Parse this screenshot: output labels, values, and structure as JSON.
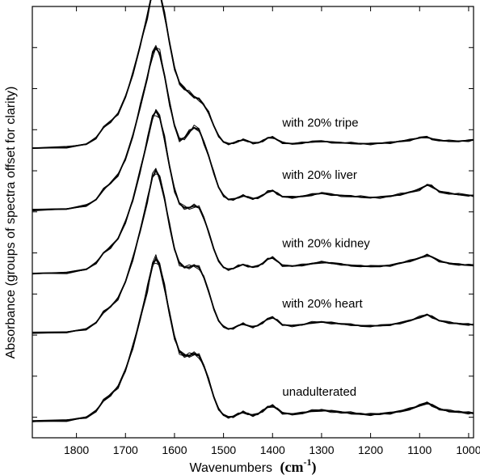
{
  "chart_data": {
    "type": "line",
    "xlabel": "Wavenumbers",
    "xlabel_unit": "cm",
    "xlabel_unit_exp": "-1",
    "ylabel": "Absorbance (groups of spectra offset for clarity)",
    "xlim": [
      1890,
      990
    ],
    "x_reversed": true,
    "y_tick_labels_shown": false,
    "grid": false,
    "x_ticks": [
      1800,
      1700,
      1600,
      1500,
      1400,
      1300,
      1200,
      1100,
      1000
    ],
    "x_tick_labels": [
      "1800",
      "1700",
      "1600",
      "1500",
      "1400",
      "1300",
      "1200",
      "1100",
      "1000"
    ],
    "ylim": [
      0,
      10.5
    ],
    "y_ticks": [
      0.5,
      1.5,
      2.5,
      3.5,
      4.5,
      5.5,
      6.5,
      7.5,
      8.5,
      9.5,
      10.5
    ],
    "x": [
      1890,
      1820,
      1780,
      1760,
      1745,
      1730,
      1715,
      1700,
      1685,
      1670,
      1655,
      1645,
      1638,
      1630,
      1620,
      1610,
      1600,
      1590,
      1580,
      1570,
      1560,
      1550,
      1540,
      1530,
      1520,
      1510,
      1500,
      1490,
      1480,
      1470,
      1460,
      1450,
      1440,
      1430,
      1420,
      1410,
      1400,
      1390,
      1380,
      1360,
      1340,
      1320,
      1300,
      1280,
      1260,
      1240,
      1220,
      1200,
      1180,
      1160,
      1140,
      1120,
      1100,
      1085,
      1075,
      1060,
      1040,
      1020,
      1000,
      990
    ],
    "series": [
      {
        "label": "with 20% tripe",
        "replicates": 4,
        "y": [
          7.05,
          7.07,
          7.15,
          7.3,
          7.55,
          7.7,
          7.9,
          8.3,
          8.85,
          9.55,
          10.3,
          10.85,
          11.0,
          10.85,
          10.3,
          9.6,
          9.0,
          8.65,
          8.5,
          8.4,
          8.3,
          8.25,
          8.1,
          7.9,
          7.6,
          7.35,
          7.2,
          7.15,
          7.18,
          7.22,
          7.25,
          7.22,
          7.18,
          7.18,
          7.22,
          7.3,
          7.32,
          7.25,
          7.18,
          7.16,
          7.18,
          7.2,
          7.22,
          7.2,
          7.18,
          7.17,
          7.16,
          7.16,
          7.17,
          7.18,
          7.22,
          7.25,
          7.3,
          7.32,
          7.28,
          7.24,
          7.22,
          7.22,
          7.24,
          7.25
        ]
      },
      {
        "label": "with 20% liver",
        "replicates": 4,
        "y": [
          5.55,
          5.57,
          5.65,
          5.8,
          6.05,
          6.2,
          6.4,
          6.8,
          7.35,
          8.05,
          8.8,
          9.35,
          9.5,
          9.35,
          8.8,
          8.15,
          7.6,
          7.25,
          7.3,
          7.45,
          7.55,
          7.5,
          7.2,
          6.85,
          6.45,
          6.1,
          5.9,
          5.8,
          5.8,
          5.85,
          5.9,
          5.85,
          5.82,
          5.85,
          5.9,
          5.98,
          6.02,
          5.95,
          5.87,
          5.85,
          5.88,
          5.92,
          5.95,
          5.92,
          5.9,
          5.88,
          5.86,
          5.85,
          5.86,
          5.88,
          5.92,
          5.98,
          6.05,
          6.15,
          6.12,
          6.0,
          5.95,
          5.92,
          5.9,
          5.9
        ]
      },
      {
        "label": "with 20% kidney",
        "replicates": 4,
        "y": [
          4.0,
          4.02,
          4.1,
          4.25,
          4.5,
          4.65,
          4.85,
          5.25,
          5.8,
          6.5,
          7.25,
          7.8,
          7.95,
          7.8,
          7.25,
          6.6,
          6.05,
          5.7,
          5.6,
          5.6,
          5.65,
          5.6,
          5.35,
          5.0,
          4.6,
          4.3,
          4.15,
          4.1,
          4.12,
          4.18,
          4.22,
          4.18,
          4.15,
          4.18,
          4.25,
          4.35,
          4.38,
          4.3,
          4.2,
          4.18,
          4.2,
          4.24,
          4.28,
          4.25,
          4.22,
          4.2,
          4.18,
          4.17,
          4.18,
          4.2,
          4.25,
          4.3,
          4.38,
          4.45,
          4.4,
          4.3,
          4.25,
          4.22,
          4.2,
          4.2
        ]
      },
      {
        "label": "with 20% heart",
        "replicates": 4,
        "y": [
          2.55,
          2.57,
          2.65,
          2.8,
          3.05,
          3.2,
          3.4,
          3.8,
          4.35,
          5.05,
          5.8,
          6.35,
          6.5,
          6.35,
          5.8,
          5.15,
          4.6,
          4.25,
          4.15,
          4.15,
          4.2,
          4.15,
          3.9,
          3.55,
          3.15,
          2.85,
          2.7,
          2.65,
          2.67,
          2.73,
          2.77,
          2.73,
          2.7,
          2.73,
          2.8,
          2.9,
          2.93,
          2.85,
          2.75,
          2.73,
          2.75,
          2.8,
          2.82,
          2.8,
          2.77,
          2.75,
          2.73,
          2.72,
          2.73,
          2.75,
          2.8,
          2.85,
          2.93,
          3.0,
          2.95,
          2.85,
          2.8,
          2.78,
          2.76,
          2.75
        ]
      },
      {
        "label": "unadulterated",
        "replicates": 6,
        "y": [
          0.4,
          0.42,
          0.5,
          0.65,
          0.9,
          1.05,
          1.25,
          1.65,
          2.2,
          2.9,
          3.65,
          4.2,
          4.35,
          4.2,
          3.65,
          3.0,
          2.45,
          2.1,
          2.0,
          2.0,
          2.05,
          2.0,
          1.75,
          1.4,
          1.0,
          0.7,
          0.55,
          0.5,
          0.52,
          0.58,
          0.62,
          0.58,
          0.55,
          0.58,
          0.65,
          0.75,
          0.78,
          0.7,
          0.6,
          0.58,
          0.6,
          0.65,
          0.67,
          0.65,
          0.62,
          0.6,
          0.58,
          0.57,
          0.58,
          0.6,
          0.65,
          0.7,
          0.78,
          0.85,
          0.8,
          0.7,
          0.65,
          0.63,
          0.61,
          0.6
        ]
      }
    ],
    "line_color": "#000000"
  }
}
